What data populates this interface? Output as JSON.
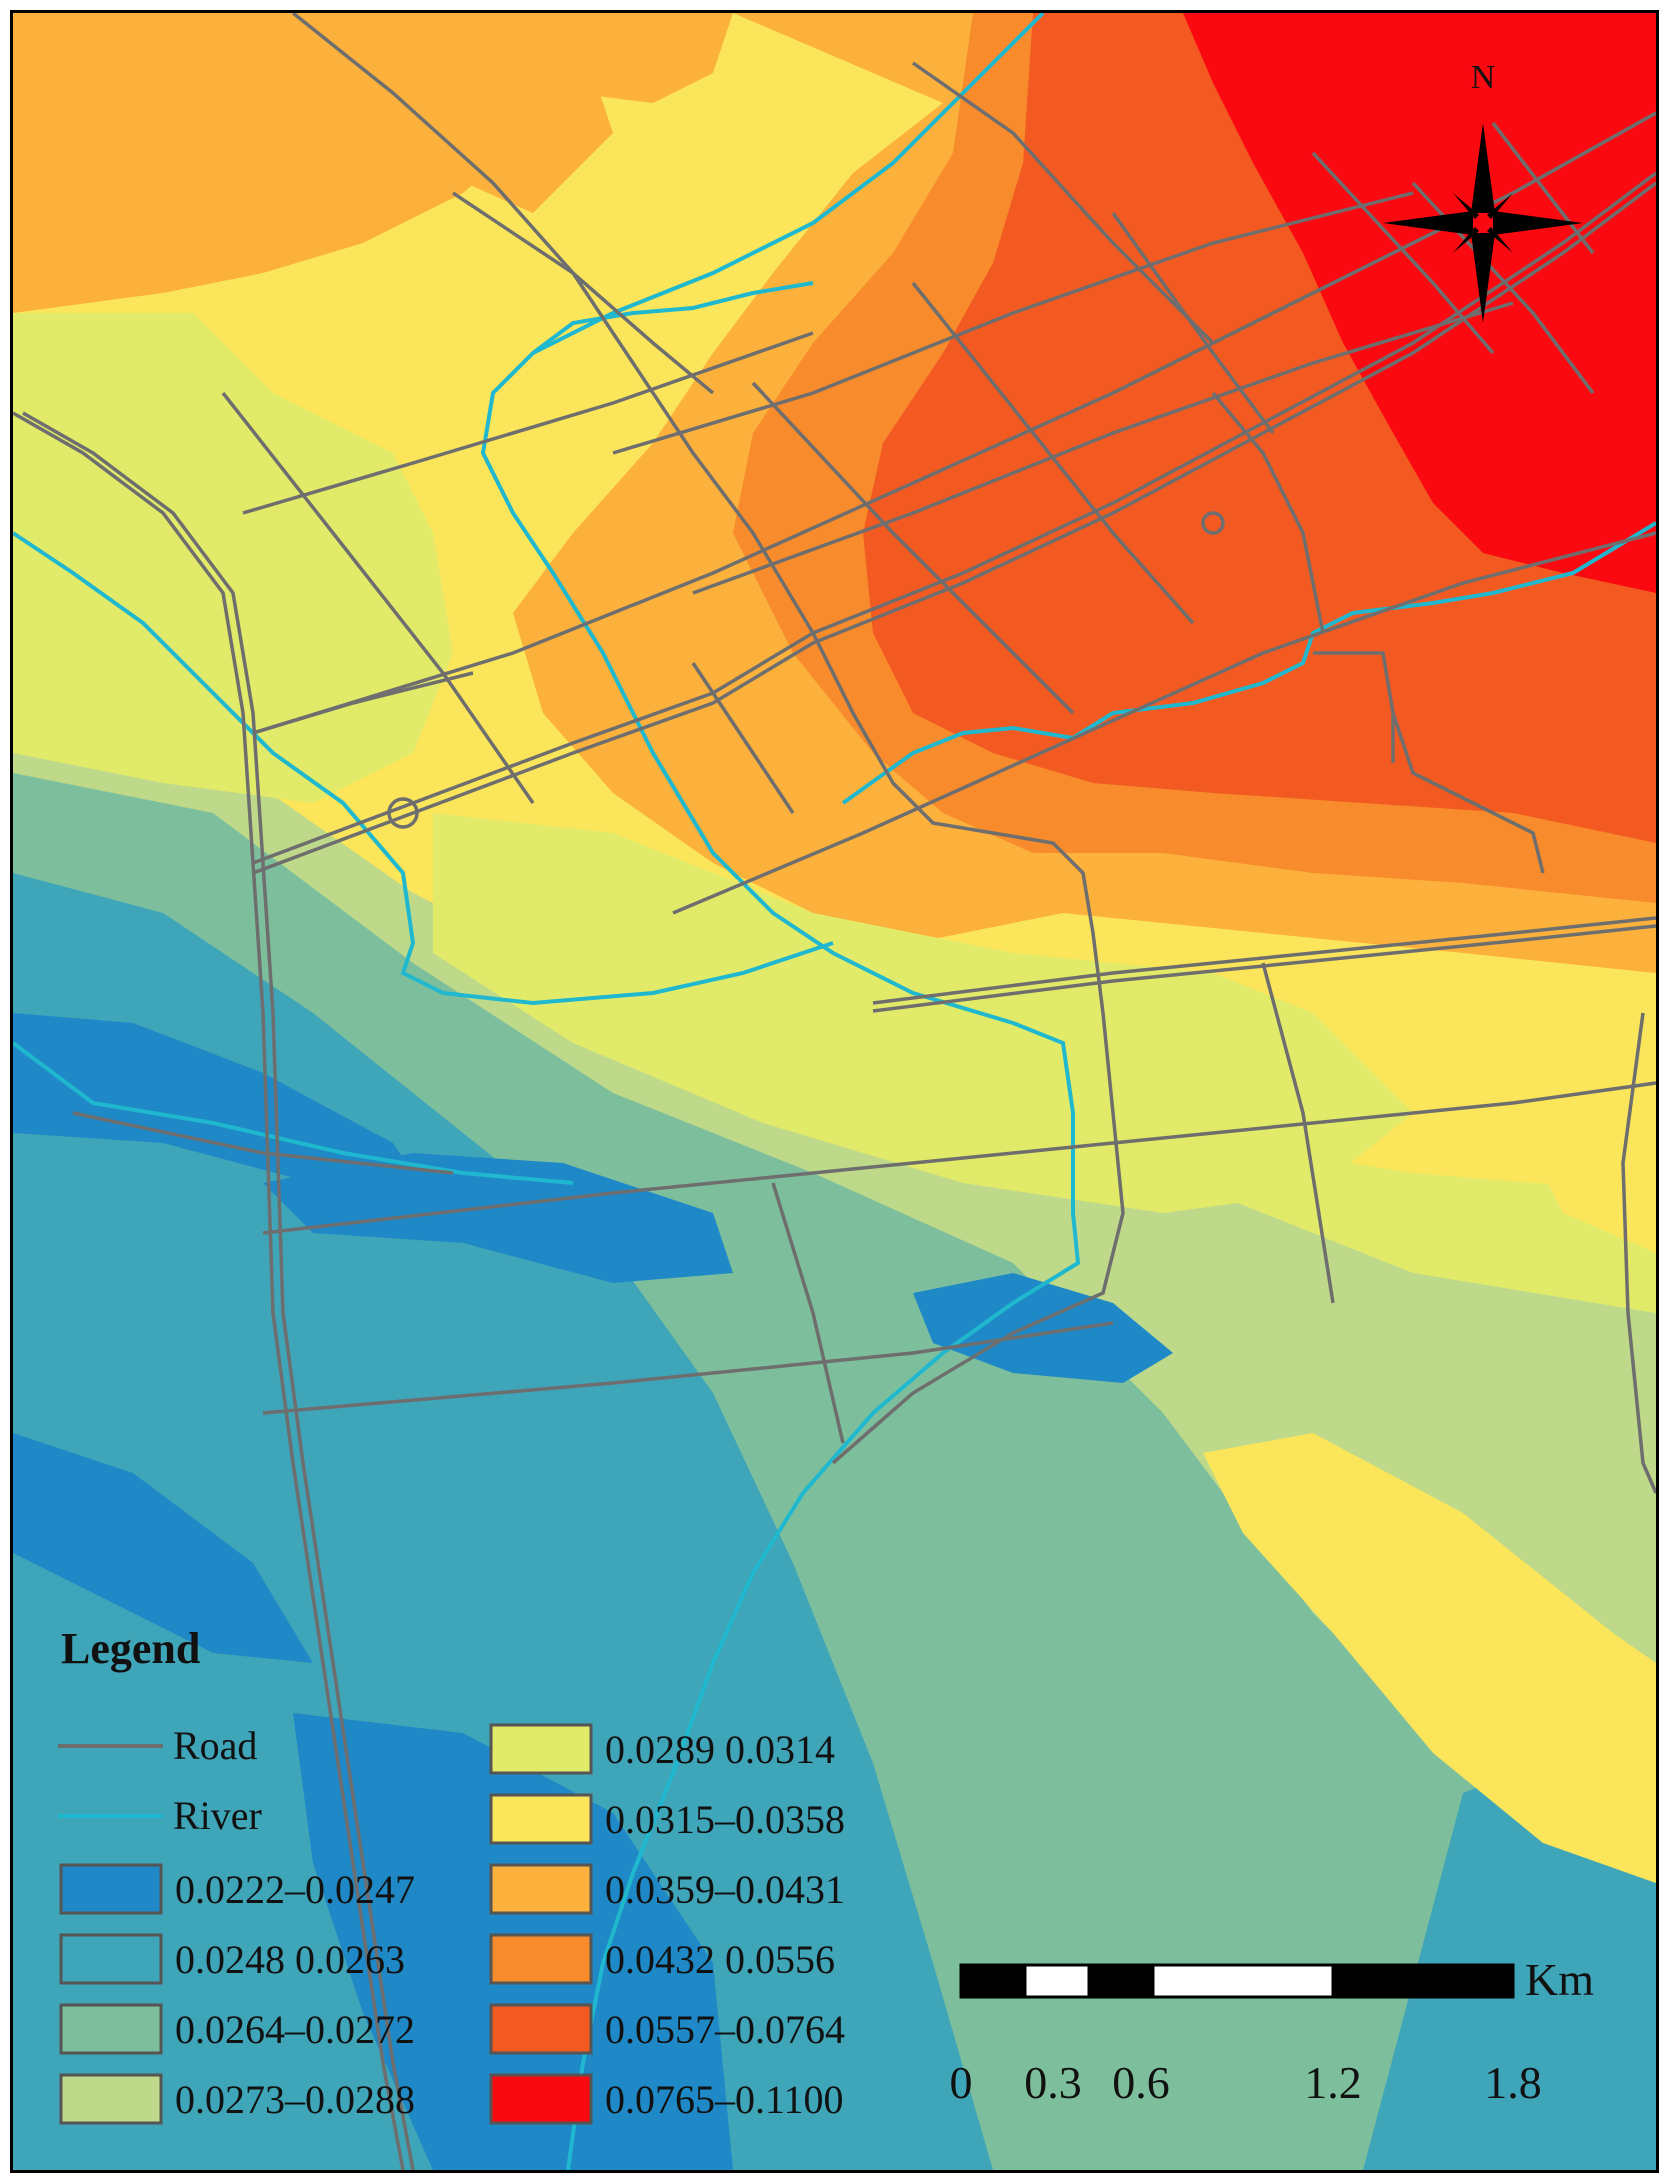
{
  "map": {
    "north_label": "N",
    "legend": {
      "title": "Legend",
      "line_items": [
        {
          "label": "Road",
          "color": "#6e6e6e"
        },
        {
          "label": "River",
          "color": "#1fb8cf"
        }
      ],
      "classes": [
        {
          "label": "0.0222–0.0247",
          "color": "#1f88c7"
        },
        {
          "label": "0.0248  0.0263",
          "color": "#3fa5b8"
        },
        {
          "label": "0.0264–0.0272",
          "color": "#7dbf9c"
        },
        {
          "label": "0.0273–0.0288",
          "color": "#bdd989"
        },
        {
          "label": "0.0289  0.0314",
          "color": "#e2ea6a"
        },
        {
          "label": "0.0315–0.0358",
          "color": "#fbe55a"
        },
        {
          "label": "0.0359–0.0431",
          "color": "#fbb13c"
        },
        {
          "label": "0.0432  0.0556",
          "color": "#f88b2c"
        },
        {
          "label": "0.0557–0.0764",
          "color": "#f35a21"
        },
        {
          "label": "0.0765–0.1100",
          "color": "#fa0a10"
        }
      ]
    },
    "scale_bar": {
      "unit": "Km",
      "ticks": [
        "0",
        "0.3",
        "0.6",
        "1.2",
        "1.8"
      ]
    }
  }
}
